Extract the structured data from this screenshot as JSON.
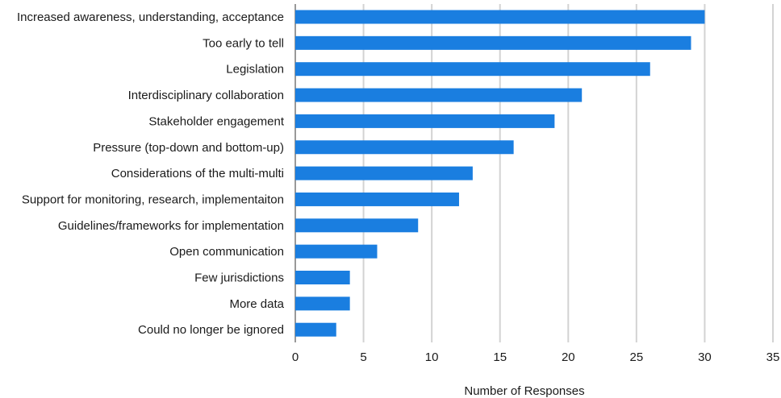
{
  "chart_data": {
    "type": "bar",
    "orientation": "horizontal",
    "title": "",
    "xlabel": "Number of Responses",
    "ylabel": "",
    "xlim": [
      0,
      35
    ],
    "xticks": [
      0,
      5,
      10,
      15,
      20,
      25,
      30,
      35
    ],
    "grid": true,
    "bar_color": "#1a7ee0",
    "categories": [
      "Increased awareness, understanding, acceptance",
      "Too early to tell",
      "Legislation",
      "Interdisciplinary collaboration",
      "Stakeholder engagement",
      "Pressure (top-down and bottom-up)",
      "Considerations of the multi-multi",
      "Support for monitoring, research, implementaiton",
      "Guidelines/frameworks for implementation",
      "Open communication",
      "Few jurisdictions",
      "More data",
      "Could no longer be ignored"
    ],
    "values": [
      30,
      29,
      26,
      21,
      19,
      16,
      13,
      12,
      9,
      6,
      4,
      4,
      3
    ]
  }
}
